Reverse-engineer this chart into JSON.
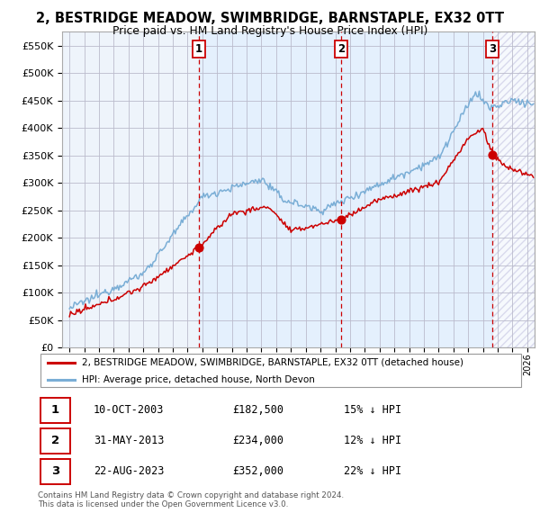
{
  "title": "2, BESTRIDGE MEADOW, SWIMBRIDGE, BARNSTAPLE, EX32 0TT",
  "subtitle": "Price paid vs. HM Land Registry's House Price Index (HPI)",
  "property_label": "2, BESTRIDGE MEADOW, SWIMBRIDGE, BARNSTAPLE, EX32 0TT (detached house)",
  "hpi_label": "HPI: Average price, detached house, North Devon",
  "sales": [
    {
      "num": 1,
      "date": "10-OCT-2003",
      "price": 182500,
      "pct": "15%",
      "dir": "↓"
    },
    {
      "num": 2,
      "date": "31-MAY-2013",
      "price": 234000,
      "pct": "12%",
      "dir": "↓"
    },
    {
      "num": 3,
      "date": "22-AUG-2023",
      "price": 352000,
      "pct": "22%",
      "dir": "↓"
    }
  ],
  "sale_years": [
    2003.78,
    2013.41,
    2023.64
  ],
  "sale_prices": [
    182500,
    234000,
    352000
  ],
  "ylim": [
    0,
    575000
  ],
  "yticks": [
    0,
    50000,
    100000,
    150000,
    200000,
    250000,
    300000,
    350000,
    400000,
    450000,
    500000,
    550000
  ],
  "xlim_start": 1994.5,
  "xlim_end": 2026.5,
  "footer": "Contains HM Land Registry data © Crown copyright and database right 2024.\nThis data is licensed under the Open Government Licence v3.0.",
  "red_color": "#cc0000",
  "blue_color": "#7aaed6",
  "shade_color": "#ddeeff",
  "background_color": "#ffffff",
  "grid_color": "#cccccc"
}
